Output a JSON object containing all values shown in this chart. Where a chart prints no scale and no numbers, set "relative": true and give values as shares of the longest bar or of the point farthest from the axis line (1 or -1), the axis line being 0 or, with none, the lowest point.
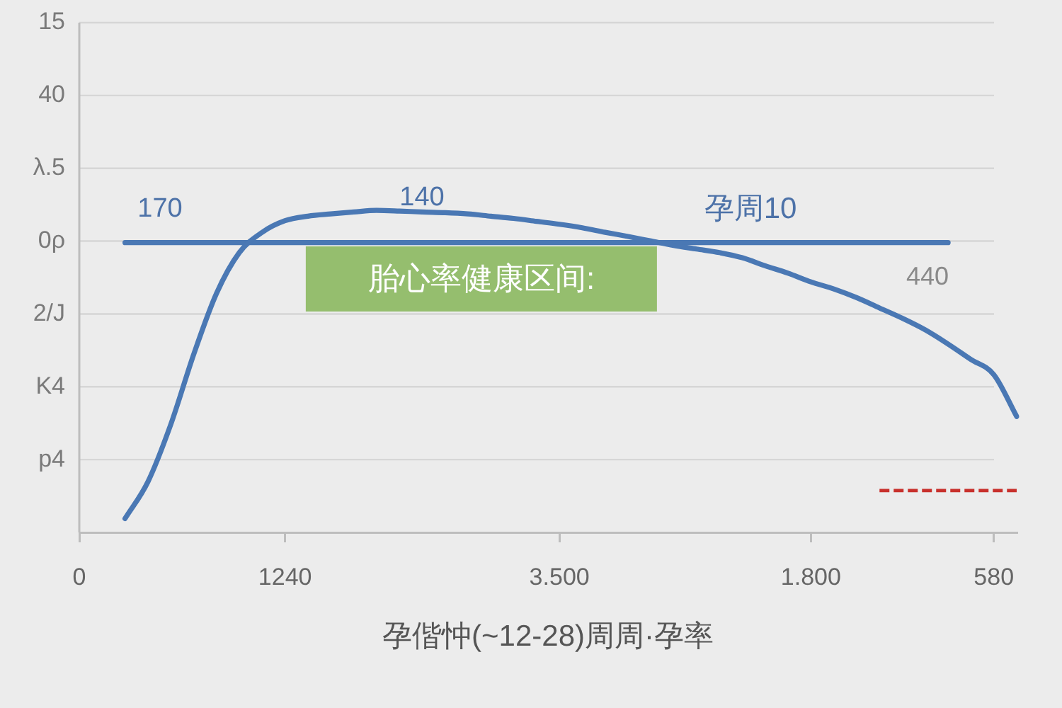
{
  "chart_data": {
    "type": "line",
    "xlabel": "孕偕忡(~12-28)周周·孕率",
    "relative": true,
    "categories": [
      "0",
      null,
      null,
      null,
      null,
      null,
      null,
      null,
      null,
      "1240",
      null,
      null,
      null,
      null,
      null,
      null,
      null,
      null,
      null,
      null,
      null,
      "3.500",
      null,
      null,
      null,
      null,
      null,
      null,
      null,
      null,
      null,
      null,
      "1.800",
      null,
      null,
      null,
      null,
      null,
      null,
      null,
      "580",
      null
    ],
    "series": [
      {
        "color": "#4a78b4",
        "values": [
          null,
          null,
          0.043,
          0.157,
          0.335,
          0.552,
          0.742,
          0.869,
          0.932,
          0.968,
          0.982,
          0.989,
          0.995,
          1.0,
          0.998,
          0.995,
          0.993,
          0.989,
          0.982,
          0.975,
          0.966,
          0.957,
          0.946,
          0.932,
          0.919,
          0.905,
          0.891,
          0.88,
          0.869,
          0.853,
          0.828,
          0.805,
          0.778,
          0.756,
          0.729,
          0.697,
          0.665,
          0.629,
          0.585,
          0.537,
          0.49,
          0.36
        ]
      },
      {
        "color": "#4a78b4",
        "values": [
          null,
          null,
          0.9,
          0.9,
          0.9,
          0.9,
          0.9,
          0.9,
          0.9,
          0.9,
          0.9,
          0.9,
          0.9,
          0.9,
          0.9,
          0.9,
          0.9,
          0.9,
          0.9,
          0.9,
          0.9,
          0.9,
          0.9,
          0.9,
          0.9,
          0.9,
          0.9,
          0.9,
          0.9,
          0.9,
          0.9,
          0.9,
          0.9,
          0.9,
          0.9,
          0.9,
          0.9,
          0.9,
          0.9,
          null,
          null,
          null
        ]
      },
      {
        "color": "#c8302c",
        "line_style": "dashed",
        "values": [
          null,
          null,
          null,
          null,
          null,
          null,
          null,
          null,
          null,
          null,
          null,
          null,
          null,
          null,
          null,
          null,
          null,
          null,
          null,
          null,
          null,
          null,
          null,
          null,
          null,
          null,
          null,
          null,
          null,
          null,
          null,
          null,
          null,
          null,
          null,
          0.13,
          0.13,
          0.13,
          0.13,
          0.13,
          0.13,
          0.13
        ]
      }
    ],
    "grid": "y",
    "annotations": [
      "15",
      "40",
      "λ.5",
      "0ρ",
      "2/J",
      "K4",
      "p4",
      "170",
      "140",
      "孕周10",
      "440",
      "胎心率健康区间:"
    ]
  }
}
